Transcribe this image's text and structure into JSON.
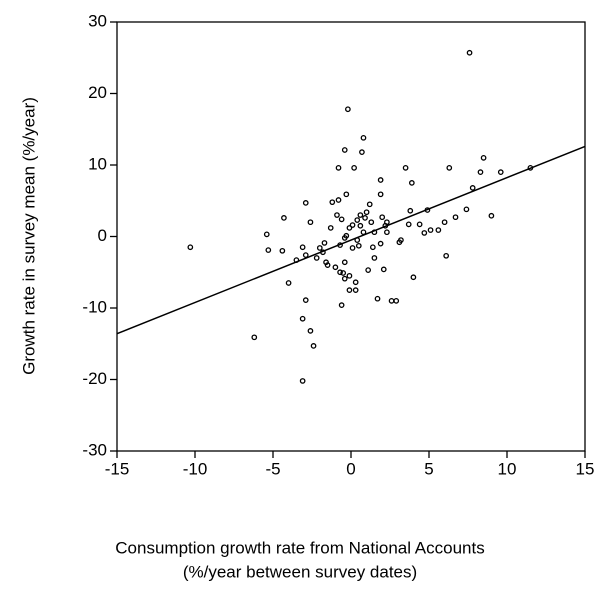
{
  "chart_data": {
    "type": "scatter",
    "ylabel": "Growth rate in survey mean (%/year)",
    "xlabel": [
      "Consumption growth rate from National Accounts",
      "(%/year between survey dates)"
    ],
    "xlim": [
      -15,
      15
    ],
    "xticks": [
      -15,
      -10,
      -5,
      0,
      5,
      10,
      15
    ],
    "ylim": [
      -30,
      30
    ],
    "yticks": [
      -30,
      -20,
      -10,
      0,
      10,
      20,
      30
    ],
    "color": "#000000",
    "series": [
      {
        "x": [
          -10.3,
          -6.2,
          -5.4,
          -5.3,
          -4.4,
          -4.3,
          -4.0,
          -3.5,
          -3.1,
          -3.1,
          -3.1,
          -2.9,
          -2.9,
          -2.9,
          -2.6,
          -2.6,
          -2.4,
          -2.2,
          -2.0,
          -1.8,
          -1.7,
          -1.6,
          -1.5,
          -1.3,
          -1.2,
          -1.0,
          -0.9,
          -0.8,
          -0.8,
          -0.7,
          -0.7,
          -0.6,
          -0.6,
          -0.5,
          -0.4,
          -0.4,
          -0.4,
          -0.4,
          -0.3,
          -0.3,
          -0.2,
          -0.1,
          -0.1,
          -0.1,
          0.1,
          0.1,
          0.2,
          0.3,
          0.3,
          0.4,
          0.4,
          0.5,
          0.6,
          0.6,
          0.7,
          0.8,
          0.8,
          0.9,
          1.0,
          1.1,
          1.2,
          1.3,
          1.4,
          1.5,
          1.5,
          1.7,
          1.9,
          1.9,
          1.9,
          2.0,
          2.1,
          2.2,
          2.3,
          2.3,
          2.6,
          2.9,
          3.1,
          3.2,
          3.5,
          3.7,
          3.8,
          3.9,
          4.0,
          4.4,
          4.7,
          4.9,
          5.1,
          5.6,
          6.0,
          6.1,
          6.3,
          6.7,
          7.4,
          7.6,
          7.8,
          8.3,
          8.5,
          9.0,
          9.6,
          11.5
        ],
        "values": [
          -1.5,
          -14.1,
          0.3,
          -1.9,
          -2.0,
          2.6,
          -6.5,
          -3.3,
          -11.5,
          -1.5,
          -20.2,
          4.7,
          -2.6,
          -8.9,
          2.0,
          -13.2,
          -15.3,
          -3.0,
          -1.6,
          -2.2,
          -0.9,
          -3.6,
          -4.0,
          1.2,
          4.8,
          -4.3,
          3.0,
          9.6,
          5.1,
          -1.2,
          -5.0,
          2.4,
          -9.6,
          -5.1,
          -0.2,
          -5.9,
          -3.6,
          12.1,
          5.9,
          0.1,
          17.8,
          1.2,
          -7.5,
          -5.5,
          -1.6,
          1.6,
          9.6,
          -6.4,
          -7.5,
          -0.5,
          2.3,
          -1.3,
          1.5,
          3.0,
          11.8,
          13.8,
          0.6,
          2.6,
          3.4,
          -4.7,
          4.5,
          2.0,
          -1.5,
          -3.0,
          0.6,
          -8.7,
          -1.0,
          5.9,
          7.9,
          2.7,
          -4.6,
          1.5,
          0.6,
          2.0,
          -9.0,
          -9.0,
          -0.8,
          -0.5,
          9.6,
          1.7,
          3.6,
          7.5,
          -5.7,
          1.7,
          0.5,
          3.7,
          0.9,
          0.9,
          2.0,
          -2.7,
          9.6,
          2.7,
          3.8,
          25.7,
          6.8,
          9.0,
          11.0,
          2.9,
          9.0,
          9.6
        ]
      },
      {
        "type": "line",
        "x": [
          -15,
          15
        ],
        "values": [
          -13.6,
          12.6
        ]
      }
    ]
  }
}
